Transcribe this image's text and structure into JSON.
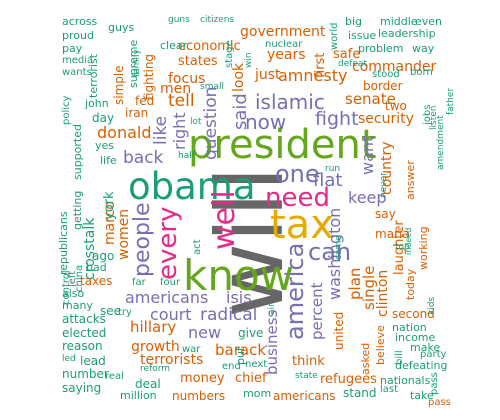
{
  "palette": {
    "green": "#1b9e77",
    "orange": "#d95f02",
    "purple": "#7570b3",
    "magenta": "#e7298a",
    "lime": "#66a61e",
    "gold": "#e6ab02",
    "brown": "#a6761d",
    "gray": "#666666"
  },
  "words": [
    {
      "text": "will",
      "color": "gray"
    },
    {
      "text": "know",
      "color": "lime"
    },
    {
      "text": "president",
      "color": "lime"
    },
    {
      "text": "obama",
      "color": "green"
    },
    {
      "text": "tax",
      "color": "gold"
    },
    {
      "text": "need",
      "color": "magenta"
    },
    {
      "text": "well",
      "color": "magenta"
    },
    {
      "text": "every",
      "color": "magenta"
    },
    {
      "text": "people",
      "color": "purple"
    },
    {
      "text": "america",
      "color": "purple"
    },
    {
      "text": "can",
      "color": "purple"
    },
    {
      "text": "one",
      "color": "purple"
    },
    {
      "text": "islamic",
      "color": "purple"
    },
    {
      "text": "now",
      "color": "purple"
    },
    {
      "text": "fight",
      "color": "purple"
    },
    {
      "text": "said",
      "color": "purple"
    },
    {
      "text": "question",
      "color": "purple"
    },
    {
      "text": "like",
      "color": "purple"
    },
    {
      "text": "back",
      "color": "purple"
    },
    {
      "text": "right",
      "color": "purple"
    },
    {
      "text": "tell",
      "color": "orange"
    },
    {
      "text": "americans",
      "color": "purple"
    },
    {
      "text": "isis",
      "color": "purple"
    },
    {
      "text": "radical",
      "color": "purple"
    },
    {
      "text": "court",
      "color": "purple"
    },
    {
      "text": "new",
      "color": "purple"
    },
    {
      "text": "washington",
      "color": "purple"
    },
    {
      "text": "percent",
      "color": "purple"
    },
    {
      "text": "business",
      "color": "purple"
    },
    {
      "text": "keep",
      "color": "purple"
    },
    {
      "text": "want",
      "color": "purple"
    },
    {
      "text": "flat",
      "color": "purple"
    },
    {
      "text": "donald",
      "color": "orange"
    },
    {
      "text": "amnesty",
      "color": "orange"
    },
    {
      "text": "senate",
      "color": "orange"
    },
    {
      "text": "security",
      "color": "orange"
    },
    {
      "text": "hillary",
      "color": "orange"
    },
    {
      "text": "barack",
      "color": "orange"
    },
    {
      "text": "terrorists",
      "color": "orange"
    },
    {
      "text": "growth",
      "color": "orange"
    },
    {
      "text": "clinton",
      "color": "orange"
    },
    {
      "text": "plan",
      "color": "orange"
    },
    {
      "text": "single",
      "color": "orange"
    },
    {
      "text": "laughter",
      "color": "orange"
    },
    {
      "text": "country",
      "color": "orange"
    },
    {
      "text": "women",
      "color": "orange"
    },
    {
      "text": "marco",
      "color": "orange"
    },
    {
      "text": "crosstalk",
      "color": "green"
    },
    {
      "text": "york",
      "color": "green"
    },
    {
      "text": "government",
      "color": "orange"
    },
    {
      "text": "commander",
      "color": "orange"
    },
    {
      "text": "just",
      "color": "orange"
    },
    {
      "text": "years",
      "color": "orange"
    },
    {
      "text": "focus",
      "color": "orange"
    },
    {
      "text": "men",
      "color": "orange"
    },
    {
      "text": "look",
      "color": "orange"
    },
    {
      "text": "first",
      "color": "orange"
    },
    {
      "text": "safe",
      "color": "orange"
    },
    {
      "text": "border",
      "color": "orange"
    },
    {
      "text": "money",
      "color": "orange"
    },
    {
      "text": "chief",
      "color": "orange"
    },
    {
      "text": "refugees",
      "color": "orange"
    },
    {
      "text": "think",
      "color": "orange"
    },
    {
      "text": "united",
      "color": "orange"
    },
    {
      "text": "second",
      "color": "orange"
    },
    {
      "text": "nation",
      "color": "green"
    },
    {
      "text": "states",
      "color": "orange"
    },
    {
      "text": "economic",
      "color": "orange"
    },
    {
      "text": "fighting",
      "color": "orange"
    },
    {
      "text": "simple",
      "color": "orange"
    },
    {
      "text": "fed",
      "color": "orange"
    },
    {
      "text": "iran",
      "color": "orange"
    },
    {
      "text": "taxes",
      "color": "orange"
    },
    {
      "text": "two",
      "color": "orange"
    },
    {
      "text": "answer",
      "color": "orange"
    },
    {
      "text": "working",
      "color": "orange"
    },
    {
      "text": "today",
      "color": "orange"
    },
    {
      "text": "say",
      "color": "orange"
    },
    {
      "text": "maria",
      "color": "orange"
    },
    {
      "text": "believe",
      "color": "orange"
    },
    {
      "text": "asked",
      "color": "orange"
    },
    {
      "text": "make",
      "color": "green"
    },
    {
      "text": "income",
      "color": "green"
    },
    {
      "text": "party",
      "color": "green"
    },
    {
      "text": "bill",
      "color": "green"
    },
    {
      "text": "defeating",
      "color": "green"
    },
    {
      "text": "nationals",
      "color": "green"
    },
    {
      "text": "take",
      "color": "green"
    },
    {
      "text": "pass",
      "color": "green"
    },
    {
      "text": "stand",
      "color": "green"
    },
    {
      "text": "last",
      "color": "green"
    },
    {
      "text": "americans",
      "color": "orange"
    },
    {
      "text": "mom",
      "color": "green"
    },
    {
      "text": "numbers",
      "color": "orange"
    },
    {
      "text": "deal",
      "color": "green"
    },
    {
      "text": "million",
      "color": "green"
    },
    {
      "text": "saying",
      "color": "green"
    },
    {
      "text": "number",
      "color": "green"
    },
    {
      "text": "lead",
      "color": "green"
    },
    {
      "text": "reason",
      "color": "green"
    },
    {
      "text": "elected",
      "color": "green"
    },
    {
      "text": "attacks",
      "color": "green"
    },
    {
      "text": "many",
      "color": "green"
    },
    {
      "text": "also",
      "color": "green"
    },
    {
      "text": "bad",
      "color": "green"
    },
    {
      "text": "ago",
      "color": "green"
    },
    {
      "text": "see",
      "color": "green"
    },
    {
      "text": "give",
      "color": "green"
    },
    {
      "text": "put",
      "color": "green"
    },
    {
      "text": "across",
      "color": "green"
    },
    {
      "text": "proud",
      "color": "green"
    },
    {
      "text": "pay",
      "color": "green"
    },
    {
      "text": "guys",
      "color": "green"
    },
    {
      "text": "supreme",
      "color": "green"
    },
    {
      "text": "clear",
      "color": "green"
    },
    {
      "text": "terrorist",
      "color": "green"
    },
    {
      "text": "wants",
      "color": "green"
    },
    {
      "text": "media",
      "color": "green"
    },
    {
      "text": "policy",
      "color": "green"
    },
    {
      "text": "john",
      "color": "green"
    },
    {
      "text": "supported",
      "color": "green"
    },
    {
      "text": "getting",
      "color": "green"
    },
    {
      "text": "republicans",
      "color": "green"
    },
    {
      "text": "day",
      "color": "green"
    },
    {
      "text": "yes",
      "color": "green"
    },
    {
      "text": "life",
      "color": "green"
    },
    {
      "text": "big",
      "color": "green"
    },
    {
      "text": "middle",
      "color": "green"
    },
    {
      "text": "even",
      "color": "green"
    },
    {
      "text": "leadership",
      "color": "green"
    },
    {
      "text": "issue",
      "color": "green"
    },
    {
      "text": "problem",
      "color": "green"
    },
    {
      "text": "way",
      "color": "green"
    },
    {
      "text": "stood",
      "color": "green"
    },
    {
      "text": "born",
      "color": "green"
    },
    {
      "text": "jobs",
      "color": "green"
    },
    {
      "text": "listen",
      "color": "green"
    },
    {
      "text": "amendment",
      "color": "green"
    },
    {
      "text": "father",
      "color": "green"
    },
    {
      "text": "never",
      "color": "green"
    },
    {
      "text": "nuclear",
      "color": "green"
    },
    {
      "text": "world",
      "color": "green"
    },
    {
      "text": "defeat",
      "color": "green"
    },
    {
      "text": "citizens",
      "color": "green"
    },
    {
      "text": "guns",
      "color": "green"
    },
    {
      "text": "family",
      "color": "green"
    },
    {
      "text": "small",
      "color": "green"
    },
    {
      "text": "stage",
      "color": "green"
    },
    {
      "text": "win",
      "color": "green"
    },
    {
      "text": "lot",
      "color": "green"
    },
    {
      "text": "half",
      "color": "green"
    },
    {
      "text": "act",
      "color": "green"
    },
    {
      "text": "run",
      "color": "green"
    },
    {
      "text": "come",
      "color": "green"
    },
    {
      "text": "indeed",
      "color": "green"
    },
    {
      "text": "top",
      "color": "green"
    },
    {
      "text": "kids",
      "color": "green"
    },
    {
      "text": "end",
      "color": "green"
    },
    {
      "text": "next",
      "color": "green"
    },
    {
      "text": "state",
      "color": "green"
    },
    {
      "text": "air",
      "color": "green"
    },
    {
      "text": "war",
      "color": "green"
    },
    {
      "text": "reform",
      "color": "green"
    },
    {
      "text": "real",
      "color": "green"
    },
    {
      "text": "try",
      "color": "green"
    },
    {
      "text": "far",
      "color": "green"
    },
    {
      "text": "four",
      "color": "green"
    },
    {
      "text": "control",
      "color": "green"
    },
    {
      "text": "left",
      "color": "green"
    },
    {
      "text": "china",
      "color": "green"
    },
    {
      "text": "led",
      "color": "green"
    },
    {
      "text": "pass",
      "color": "orange"
    }
  ]
}
